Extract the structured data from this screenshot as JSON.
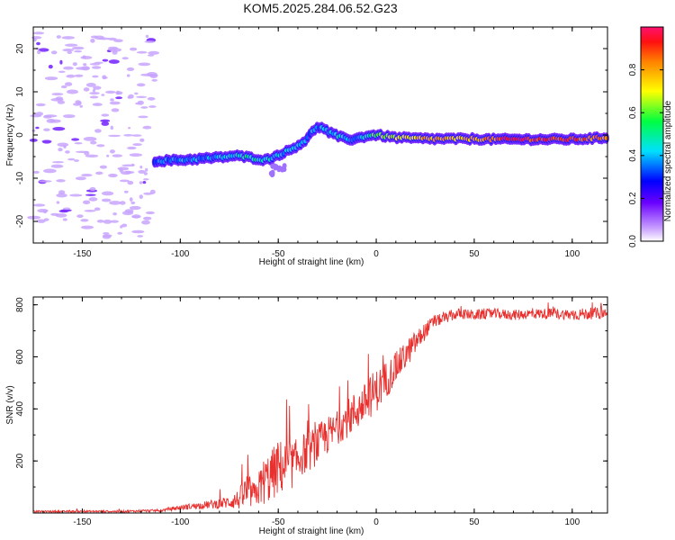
{
  "title": "KOM5.2025.284.06.52.G23",
  "chart_data": [
    {
      "type": "heatmap",
      "name": "spectrogram",
      "xlabel": "Height of straight line (km)",
      "ylabel": "Frequency (Hz)",
      "xlim": [
        -175,
        118
      ],
      "ylim": [
        -25,
        25
      ],
      "x_ticks": [
        -150,
        -100,
        -50,
        0,
        50,
        100
      ],
      "x_tick_labels": [
        "-150",
        "-100",
        "-50",
        "0",
        "50",
        "100"
      ],
      "y_ticks": [
        -20,
        -10,
        0,
        10,
        20
      ],
      "y_tick_labels": [
        "-20",
        "-10",
        "0",
        "10",
        "20"
      ],
      "track": {
        "x": [
          -113,
          -100,
          -90,
          -80,
          -72,
          -68,
          -62,
          -56,
          -52,
          -48,
          -44,
          -40,
          -36,
          -33,
          -30,
          -27,
          -24,
          -20,
          -16,
          -12,
          -8,
          -4,
          0,
          10,
          20,
          30,
          40,
          50,
          60,
          70,
          80,
          90,
          100,
          110,
          118
        ],
        "y": [
          -6.0,
          -5.8,
          -5.5,
          -5.2,
          -4.8,
          -5.0,
          -5.4,
          -5.8,
          -5.0,
          -4.2,
          -3.5,
          -2.4,
          -1.2,
          0.5,
          2.0,
          1.5,
          0.6,
          -0.2,
          -0.8,
          -1.0,
          -0.6,
          -0.1,
          0.0,
          -0.6,
          -0.8,
          -0.9,
          -0.9,
          -0.9,
          -1.0,
          -1.0,
          -1.0,
          -1.0,
          -1.0,
          -0.8,
          -0.6
        ],
        "amp": [
          0.35,
          0.38,
          0.38,
          0.4,
          0.45,
          0.5,
          0.5,
          0.45,
          0.45,
          0.4,
          0.42,
          0.45,
          0.4,
          0.35,
          0.35,
          0.4,
          0.4,
          0.45,
          0.4,
          0.35,
          0.4,
          0.5,
          0.6,
          0.7,
          0.75,
          0.8,
          0.75,
          0.78,
          0.85,
          0.95,
          0.9,
          0.92,
          0.9,
          0.85,
          0.8
        ]
      },
      "noise_region_x": [
        -175,
        -113
      ],
      "colorbar": {
        "label": "Normalized spectral amplitude",
        "range": [
          0.0,
          1.0
        ],
        "ticks": [
          0.0,
          0.2,
          0.4,
          0.6,
          0.8
        ],
        "tick_labels": [
          "0.0",
          "0.2",
          "0.4",
          "0.6",
          "0.8"
        ]
      }
    },
    {
      "type": "line",
      "name": "snr",
      "xlabel": "Height of straight line (km)",
      "ylabel": "SNR (v/v)",
      "xlim": [
        -175,
        118
      ],
      "ylim": [
        0,
        830
      ],
      "x_ticks": [
        -150,
        -100,
        -50,
        0,
        50,
        100
      ],
      "x_tick_labels": [
        "-150",
        "-100",
        "-50",
        "0",
        "50",
        "100"
      ],
      "y_ticks": [
        200,
        400,
        600,
        800
      ],
      "y_tick_labels": [
        "200",
        "400",
        "600",
        "800"
      ],
      "color": "#e8302e",
      "envelope": {
        "x": [
          -175,
          -130,
          -110,
          -100,
          -90,
          -80,
          -75,
          -70,
          -66,
          -62,
          -58,
          -54,
          -50,
          -46,
          -42,
          -38,
          -34,
          -30,
          -26,
          -22,
          -18,
          -14,
          -10,
          -6,
          -2,
          2,
          6,
          10,
          14,
          18,
          22,
          26,
          30,
          34,
          38,
          42,
          50,
          60,
          70,
          80,
          90,
          100,
          110,
          118
        ],
        "base": [
          5,
          5,
          8,
          18,
          25,
          30,
          35,
          40,
          60,
          55,
          90,
          110,
          140,
          150,
          160,
          200,
          215,
          240,
          270,
          290,
          320,
          345,
          370,
          400,
          430,
          460,
          500,
          540,
          580,
          620,
          660,
          700,
          730,
          740,
          750,
          760,
          755,
          760,
          755,
          760,
          760,
          755,
          760,
          760
        ],
        "spread": [
          6,
          8,
          10,
          20,
          25,
          40,
          50,
          80,
          150,
          90,
          180,
          200,
          220,
          200,
          180,
          160,
          160,
          150,
          150,
          140,
          130,
          150,
          160,
          150,
          170,
          160,
          140,
          120,
          110,
          100,
          80,
          60,
          50,
          40,
          40,
          40,
          40,
          40,
          40,
          40,
          40,
          45,
          45,
          45
        ]
      }
    }
  ]
}
